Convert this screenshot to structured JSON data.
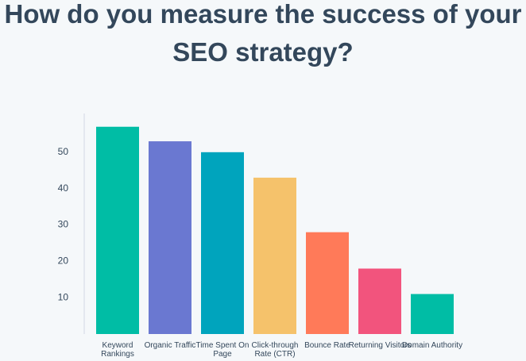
{
  "chart_data": {
    "type": "bar",
    "title": "How do you measure the success of your SEO strategy?",
    "categories": [
      "Keyword Rankings",
      "Organic Traffic",
      "Time Spent On Page",
      "Click-through Rate (CTR)",
      "Bounce Rate",
      "Returning Visitors",
      "Domain Authority"
    ],
    "values": [
      57,
      53,
      50,
      43,
      28,
      18,
      11
    ],
    "colors": [
      "#00bda5",
      "#6a78d1",
      "#00a4bd",
      "#f5c26b",
      "#ff7a59",
      "#f2547d",
      "#00bda5"
    ],
    "ylim": [
      0,
      60
    ],
    "yticks": [
      10,
      20,
      30,
      40,
      50
    ],
    "grid": false
  }
}
